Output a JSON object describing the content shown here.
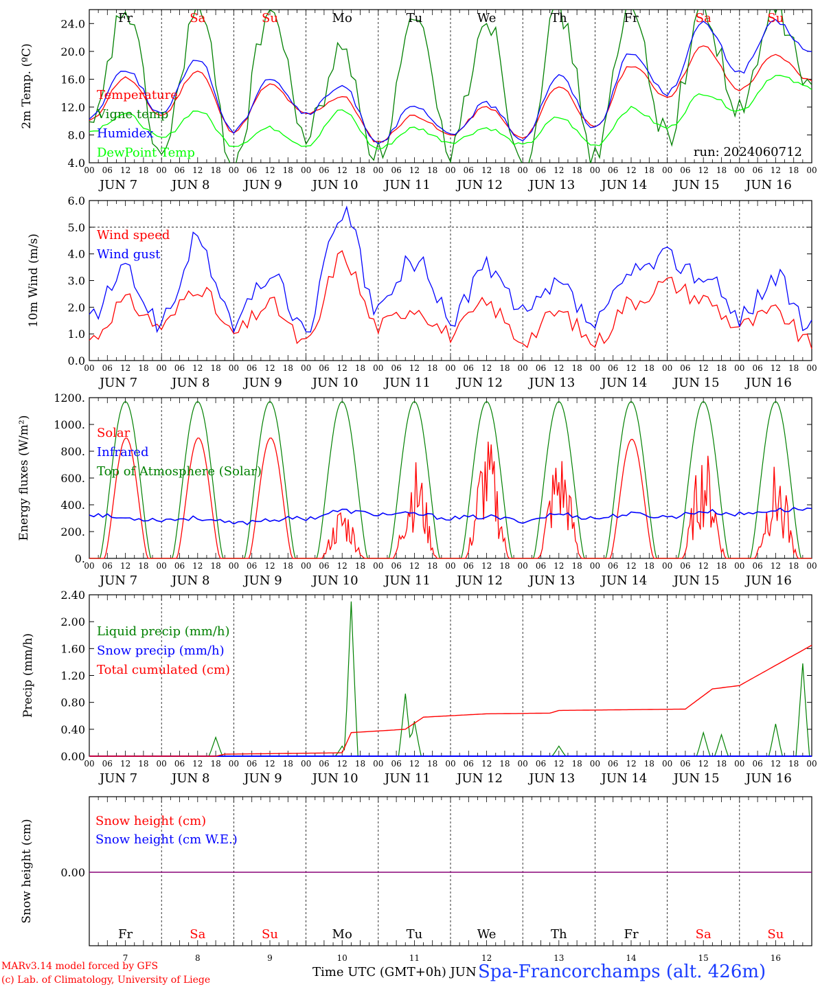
{
  "chart_data": [
    {
      "type": "line",
      "ylabel": "2m Temp. (ºC)",
      "ylim": [
        4,
        26
      ],
      "yticks": [
        "4.0",
        "8.0",
        "12.0",
        "16.0",
        "20.0",
        "24.0"
      ],
      "run_label": "run: 2024060712",
      "x": [
        "Jun 7 00",
        "Jun 7 12",
        "Jun 8 00",
        "Jun 8 12",
        "Jun 9 00",
        "Jun 9 12",
        "Jun 10 00",
        "Jun 10 12",
        "Jun 11 00",
        "Jun 11 12",
        "Jun 12 00",
        "Jun 12 12",
        "Jun 13 00",
        "Jun 13 12",
        "Jun 14 00",
        "Jun 14 12",
        "Jun 15 00",
        "Jun 15 12",
        "Jun 16 00",
        "Jun 16 12",
        "Jun 17 00"
      ],
      "series": [
        {
          "name": "Temperature",
          "color": "#ff0000",
          "values": [
            10,
            16.2,
            10.8,
            17.2,
            8.5,
            15.2,
            11,
            13.5,
            7,
            10.8,
            8,
            12,
            7.5,
            15,
            9,
            18,
            13.5,
            20.7,
            14.5,
            19.4,
            15.8
          ]
        },
        {
          "name": "Vigne temp",
          "color": "#008000",
          "values": [
            8,
            26,
            5,
            26,
            4,
            26,
            8,
            20,
            5,
            24,
            6,
            25,
            4.5,
            26,
            5,
            26,
            8,
            26,
            11,
            26,
            14.5
          ]
        },
        {
          "name": "Humidex",
          "color": "#0000ff",
          "values": [
            10.5,
            17.5,
            11,
            19,
            8.5,
            16.2,
            11,
            15,
            7,
            12,
            8,
            12.5,
            7.5,
            16.5,
            9,
            19.7,
            14,
            24,
            17,
            24.2,
            19.7
          ]
        },
        {
          "name": "DewPoint Temp",
          "color": "#00ff00",
          "values": [
            8.5,
            11,
            7.5,
            11.5,
            6.5,
            9,
            6.5,
            11.5,
            6,
            9,
            7,
            9,
            6.5,
            10.5,
            6.5,
            11.8,
            9,
            14,
            11.5,
            16.5,
            14.8
          ]
        }
      ]
    },
    {
      "type": "line",
      "ylabel": "10m Wind (m/s)",
      "ylim": [
        0,
        6
      ],
      "yticks": [
        "0.0",
        "1.0",
        "2.0",
        "3.0",
        "4.0",
        "5.0",
        "6.0"
      ],
      "x": [
        "Jun 7 00",
        "Jun 7 12",
        "Jun 8 00",
        "Jun 8 12",
        "Jun 9 00",
        "Jun 9 12",
        "Jun 10 00",
        "Jun 10 12",
        "Jun 11 00",
        "Jun 11 12",
        "Jun 12 00",
        "Jun 12 12",
        "Jun 13 00",
        "Jun 13 12",
        "Jun 14 00",
        "Jun 14 12",
        "Jun 15 00",
        "Jun 15 12",
        "Jun 16 00",
        "Jun 16 12",
        "Jun 17 00"
      ],
      "series": [
        {
          "name": "Wind speed",
          "color": "#ff0000",
          "values": [
            0.8,
            2.2,
            1.3,
            2.8,
            1,
            2.1,
            0.6,
            3.9,
            1.3,
            2,
            1,
            2.1,
            0.8,
            1.8,
            0.7,
            2.2,
            2.9,
            2.3,
            1.3,
            1.8,
            0.6
          ]
        },
        {
          "name": "Wind gust",
          "color": "#0000ff",
          "values": [
            1.6,
            3.3,
            1.4,
            4.5,
            1.4,
            3.2,
            1.2,
            5.6,
            1.9,
            3.8,
            1.6,
            3.5,
            1.7,
            2.8,
            1.4,
            3.2,
            3.9,
            3.2,
            1.7,
            3.1,
            1.1
          ]
        }
      ]
    },
    {
      "type": "line",
      "ylabel": "Energy fluxes (W/m²)",
      "ylim": [
        0,
        1200
      ],
      "yticks": [
        "0.",
        "200.",
        "400.",
        "600.",
        "800.",
        "1000.",
        "1200."
      ],
      "x": [
        "Jun 7 00",
        "Jun 7 12",
        "Jun 8 00",
        "Jun 8 12",
        "Jun 9 00",
        "Jun 9 12",
        "Jun 10 00",
        "Jun 10 12",
        "Jun 11 00",
        "Jun 11 12",
        "Jun 12 00",
        "Jun 12 12",
        "Jun 13 00",
        "Jun 13 12",
        "Jun 14 00",
        "Jun 14 12",
        "Jun 15 00",
        "Jun 15 12",
        "Jun 16 00",
        "Jun 16 12",
        "Jun 17 00"
      ],
      "series": [
        {
          "name": "Solar",
          "color": "#ff0000",
          "daily_peaks": [
            900,
            900,
            900,
            400,
            740,
            910,
            830,
            890,
            830,
            710
          ]
        },
        {
          "name": "Infrared",
          "color": "#0000ff",
          "values": [
            330,
            300,
            290,
            300,
            260,
            290,
            300,
            355,
            330,
            330,
            300,
            310,
            280,
            330,
            300,
            330,
            310,
            350,
            330,
            360,
            370
          ]
        },
        {
          "name": "Top of Atmosphere (Solar)",
          "color": "#008000",
          "daily_peak": 1170
        }
      ]
    },
    {
      "type": "line",
      "ylabel": "Precip (mm/h)",
      "ylim": [
        0,
        2.4
      ],
      "yticks": [
        "0.00",
        "0.40",
        "0.80",
        "1.20",
        "1.60",
        "2.00",
        "2.40"
      ],
      "series": [
        {
          "name": "Liquid precip (mm/h)",
          "color": "#008000",
          "x": [
            "Jun 8 18",
            "Jun 10 12",
            "Jun 10 15",
            "Jun 11 09",
            "Jun 11 12",
            "Jun 13 12",
            "Jun 15 12",
            "Jun 15 18",
            "Jun 16 12",
            "Jun 16 21"
          ],
          "values": [
            0.28,
            0.15,
            2.3,
            0.93,
            0.52,
            0.15,
            0.35,
            0.32,
            0.48,
            1.38
          ]
        },
        {
          "name": "Snow precip (mm/h)",
          "color": "#0000ff",
          "values": [
            0
          ]
        },
        {
          "name": "Total cumulated (cm)",
          "color": "#ff0000",
          "x": [
            "Jun 7 00",
            "Jun 8 18",
            "Jun 8 21",
            "Jun 10 12",
            "Jun 10 15",
            "Jun 11 09",
            "Jun 11 15",
            "Jun 12 12",
            "Jun 13 09",
            "Jun 13 12",
            "Jun 15 06",
            "Jun 15 15",
            "Jun 16 00",
            "Jun 16 12",
            "Jun 17 00"
          ],
          "values": [
            0,
            0,
            0.03,
            0.05,
            0.35,
            0.4,
            0.58,
            0.63,
            0.64,
            0.68,
            0.7,
            1.0,
            1.05,
            1.35,
            1.65
          ]
        }
      ]
    },
    {
      "type": "line",
      "ylabel": "Snow height (cm)",
      "yticks": [
        "0.00"
      ],
      "series": [
        {
          "name": "Snow height (cm)",
          "color": "#ff0000",
          "values": [
            0,
            0
          ]
        },
        {
          "name": "Snow height (cm W.E.)",
          "color": "#0000ff",
          "values": [
            0,
            0
          ]
        }
      ]
    }
  ],
  "days": [
    {
      "abbr": "Fr",
      "label": "JUN   7",
      "num": "7",
      "weekend": false
    },
    {
      "abbr": "Sa",
      "label": "JUN   8",
      "num": "8",
      "weekend": true
    },
    {
      "abbr": "Su",
      "label": "JUN   9",
      "num": "9",
      "weekend": true
    },
    {
      "abbr": "Mo",
      "label": "JUN 10",
      "num": "10",
      "weekend": false
    },
    {
      "abbr": "Tu",
      "label": "JUN 11",
      "num": "11",
      "weekend": false
    },
    {
      "abbr": "We",
      "label": "JUN 12",
      "num": "12",
      "weekend": false
    },
    {
      "abbr": "Th",
      "label": "JUN 13",
      "num": "13",
      "weekend": false
    },
    {
      "abbr": "Fr",
      "label": "JUN 14",
      "num": "14",
      "weekend": false
    },
    {
      "abbr": "Sa",
      "label": "JUN 15",
      "num": "15",
      "weekend": true
    },
    {
      "abbr": "Su",
      "label": "JUN 16",
      "num": "16",
      "weekend": true
    }
  ],
  "hour_ticks": [
    "00",
    "06",
    "12",
    "18"
  ],
  "colors": {
    "weekday": "#000000",
    "weekend": "#ff0000"
  },
  "footer": {
    "model_line": "MARv3.14 model forced by GFS",
    "copyright_line": "(c) Lab. of Climatology, University of Liege",
    "time_axis": "Time UTC (GMT+0h) JUN",
    "station": "Spa-Francorchamps (alt. 426m)"
  }
}
